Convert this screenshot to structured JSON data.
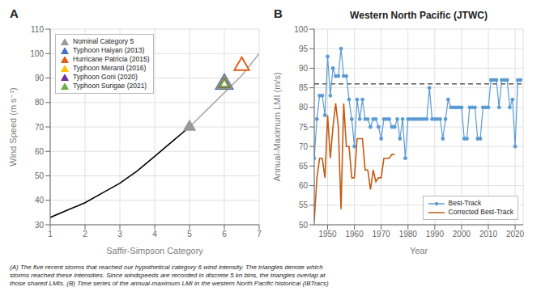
{
  "chart_data": [
    {
      "type": "line",
      "xlabel": "Saffir-Simpson Category",
      "ylabel": "Wind Speed (m s⁻¹)",
      "xlim": [
        1,
        7
      ],
      "ylim": [
        30,
        110
      ],
      "xticks": [
        1,
        2,
        3,
        4,
        5,
        6,
        7
      ],
      "yticks": [
        30,
        40,
        50,
        60,
        70,
        80,
        90,
        100,
        110
      ],
      "grid": true,
      "legend": "upper left",
      "annotations": [
        "A"
      ],
      "series": [
        {
          "type": "line",
          "color": "#000000",
          "x": [
            1,
            1.5,
            2,
            2.5,
            3,
            3.5,
            4,
            4.5,
            5
          ],
          "values": [
            33,
            36,
            39,
            43,
            47,
            52,
            58,
            64,
            70
          ]
        },
        {
          "type": "line",
          "color": "#aaaaaa",
          "x": [
            5,
            5.5,
            6,
            6.5,
            7
          ],
          "values": [
            70,
            77,
            84,
            91,
            100
          ]
        },
        {
          "type": "scatter",
          "name": "Nominal Category 5",
          "color": "#999999",
          "marker": "triangle",
          "x": [
            5
          ],
          "values": [
            70
          ]
        },
        {
          "type": "scatter",
          "name": "Typhoon Haiyan (2013)",
          "color": "#4472c4",
          "marker": "triangle-open",
          "x": [
            6
          ],
          "values": [
            87.5
          ]
        },
        {
          "type": "scatter",
          "name": "Hurricane Patricia (2015)",
          "color": "#e05c1a",
          "marker": "triangle-open",
          "x": [
            6.5
          ],
          "values": [
            95
          ]
        },
        {
          "type": "scatter",
          "name": "Typhoon Meranti (2016)",
          "color": "#ffc000",
          "marker": "triangle-open",
          "x": [
            6
          ],
          "values": [
            87.5
          ]
        },
        {
          "type": "scatter",
          "name": "Typhoon Goni (2020)",
          "color": "#7030a0",
          "marker": "triangle-open",
          "x": [
            6
          ],
          "values": [
            87.5
          ]
        },
        {
          "type": "scatter",
          "name": "Typhoon Surigae (2021)",
          "color": "#70ad47",
          "marker": "triangle-open",
          "x": [
            6
          ],
          "values": [
            87.5
          ]
        }
      ]
    },
    {
      "type": "line",
      "title": "Western North Pacific (JTWC)",
      "xlabel": "Year",
      "ylabel": "Annual-Maximum LMI (m/s)",
      "xlim": [
        1945,
        2023
      ],
      "ylim": [
        50,
        100
      ],
      "xticks": [
        1950,
        1960,
        1970,
        1980,
        1990,
        2000,
        2010,
        2020
      ],
      "yticks": [
        50,
        55,
        60,
        65,
        70,
        75,
        80,
        85,
        90,
        95,
        100
      ],
      "grid": true,
      "legend": "lower right",
      "annotations": [
        "B"
      ],
      "hline": {
        "y": 86,
        "color": "#555555",
        "line_style": "dashed"
      },
      "series": [
        {
          "type": "line",
          "name": "Best-Track",
          "color": "#5b9bd5",
          "marker": "circle",
          "x": [
            1945,
            1946,
            1947,
            1948,
            1949,
            1950,
            1951,
            1952,
            1953,
            1954,
            1955,
            1956,
            1957,
            1958,
            1959,
            1960,
            1961,
            1962,
            1963,
            1964,
            1965,
            1966,
            1967,
            1968,
            1969,
            1970,
            1971,
            1972,
            1973,
            1974,
            1975,
            1976,
            1977,
            1978,
            1979,
            1980,
            1981,
            1982,
            1983,
            1984,
            1985,
            1986,
            1987,
            1988,
            1989,
            1990,
            1991,
            1992,
            1993,
            1994,
            1995,
            1996,
            1997,
            1998,
            1999,
            2000,
            2001,
            2002,
            2003,
            2004,
            2005,
            2006,
            2007,
            2008,
            2009,
            2010,
            2011,
            2012,
            2013,
            2014,
            2015,
            2016,
            2017,
            2018,
            2019,
            2020,
            2021,
            2022
          ],
          "values": [
            67,
            77,
            83,
            83,
            78,
            93,
            83,
            90,
            88,
            88,
            95,
            88,
            88,
            82,
            77,
            70,
            82,
            77,
            82,
            77,
            77,
            75,
            77,
            77,
            75,
            72,
            77,
            77,
            77,
            75,
            75,
            77,
            72,
            77,
            67,
            77,
            77,
            77,
            77,
            77,
            77,
            77,
            77,
            85,
            77,
            77,
            77,
            77,
            72,
            77,
            82,
            80,
            80,
            80,
            80,
            80,
            72,
            72,
            80,
            80,
            80,
            72,
            72,
            80,
            80,
            80,
            87,
            87,
            87,
            80,
            87,
            87,
            87,
            80,
            82,
            70,
            87,
            87
          ]
        },
        {
          "type": "line",
          "name": "Corrected Best-Track",
          "color": "#c55a11",
          "x": [
            1945,
            1946,
            1947,
            1948,
            1949,
            1950,
            1951,
            1952,
            1953,
            1954,
            1955,
            1956,
            1957,
            1958,
            1959,
            1960,
            1961,
            1962,
            1963,
            1964,
            1965,
            1966,
            1967,
            1968,
            1969,
            1970,
            1971,
            1972,
            1973,
            1974,
            1975
          ],
          "values": [
            51,
            62,
            67,
            67,
            62,
            78,
            67,
            75,
            81,
            75,
            54,
            81,
            70,
            70,
            62,
            62,
            72,
            72,
            72,
            64,
            64,
            59,
            64,
            61,
            62,
            62,
            67,
            67,
            67,
            68,
            68
          ]
        }
      ]
    }
  ],
  "annotations": [
    "(A) The five recent storms that reached our hypothetical category 6 wind intensity. The triangles denote which",
    "storms reached these intensities. Since windspeeds are recorded in discrete 5 kn bins, the triangles overlap at",
    "those shared LMIs. (B) Time series of the annual-maximum LMI in the western North Pacific historical (IBTracs)"
  ]
}
